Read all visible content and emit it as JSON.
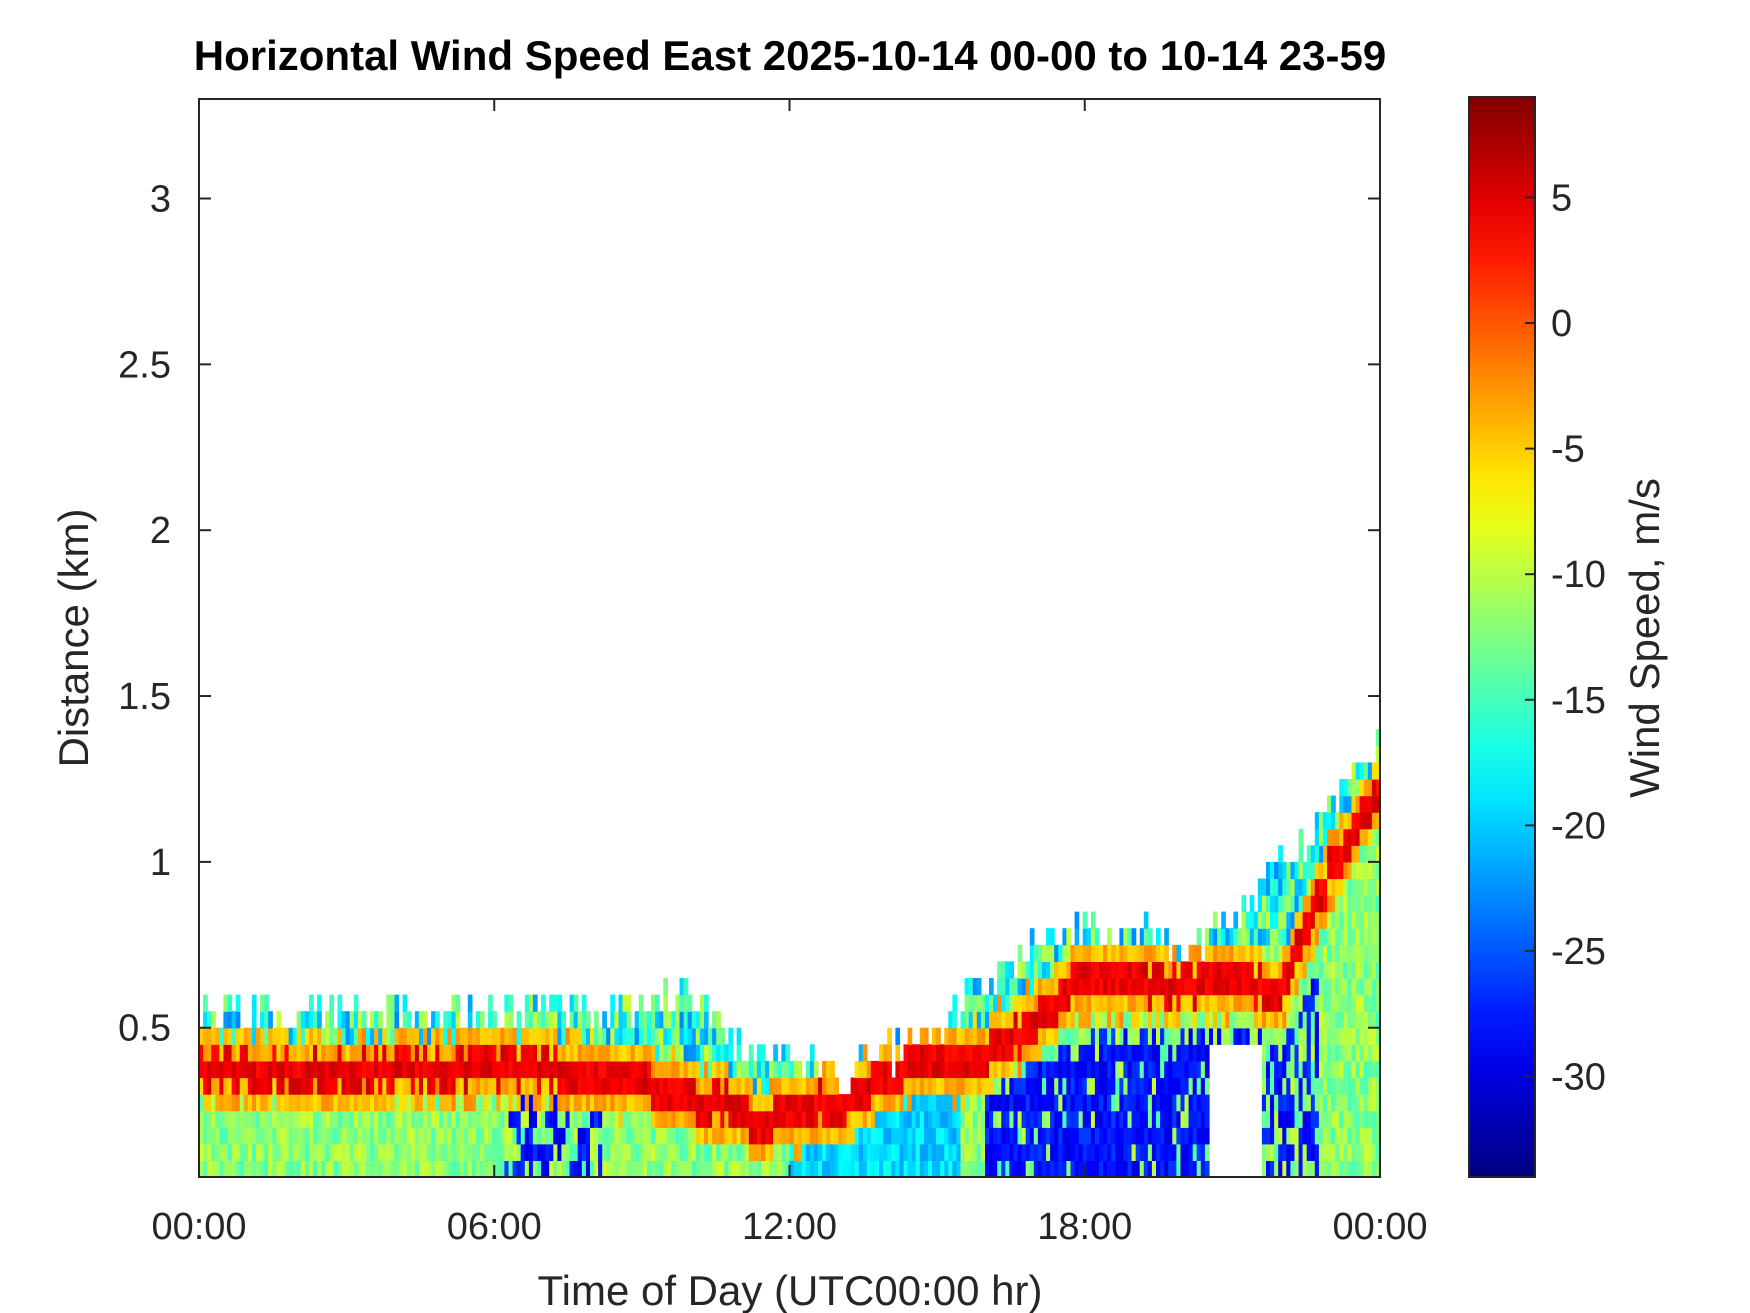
{
  "chart_data": {
    "type": "heatmap",
    "title": "Horizontal Wind Speed East 2025-10-14 00-00 to 10-14 23-59",
    "xlabel": "Time of Day (UTC00:00 hr)",
    "ylabel": "Distance (km)",
    "x_unit": "hours",
    "xlim": [
      0,
      24
    ],
    "ylim": [
      0.05,
      3.3
    ],
    "x_ticks": [
      0,
      6,
      12,
      18,
      24
    ],
    "x_tick_labels": [
      "00:00",
      "06:00",
      "12:00",
      "18:00",
      "00:00"
    ],
    "y_ticks": [
      0.5,
      1,
      1.5,
      2,
      2.5,
      3
    ],
    "y_tick_labels": [
      "0.5",
      "1",
      "1.5",
      "2",
      "2.5",
      "3"
    ],
    "grid": false,
    "colorbar": {
      "label": "Wind Speed, m/s",
      "colormap": "jet",
      "range": [
        -34,
        9
      ],
      "ticks": [
        5,
        0,
        -5,
        -10,
        -15,
        -20,
        -25,
        -30
      ],
      "tick_labels": [
        "5",
        "0",
        "-5",
        "-10",
        "-15",
        "-20",
        "-25",
        "-30"
      ]
    },
    "features": {
      "jet_core_height_km": [
        [
          0,
          0.38
        ],
        [
          3,
          0.36
        ],
        [
          6,
          0.39
        ],
        [
          9,
          0.34
        ],
        [
          11.5,
          0.22
        ],
        [
          13,
          0.28
        ],
        [
          14.5,
          0.4
        ],
        [
          15.5,
          0.38
        ],
        [
          17,
          0.52
        ],
        [
          18,
          0.65
        ],
        [
          20,
          0.63
        ],
        [
          21,
          0.65
        ],
        [
          22,
          0.6
        ],
        [
          23,
          0.98
        ],
        [
          24,
          1.22
        ]
      ],
      "data_top_km": [
        [
          0,
          0.52
        ],
        [
          10,
          0.55
        ],
        [
          11.5,
          0.38
        ],
        [
          13,
          0.33
        ],
        [
          15,
          0.47
        ],
        [
          16,
          0.6
        ],
        [
          17,
          0.75
        ],
        [
          18.5,
          0.78
        ],
        [
          20,
          0.72
        ],
        [
          21,
          0.8
        ],
        [
          22.5,
          1.05
        ],
        [
          24,
          1.35
        ]
      ],
      "core_speed_ms": 6,
      "near_surface_speed_ms": -12,
      "strong_negative_speed_ms": -28
    }
  }
}
